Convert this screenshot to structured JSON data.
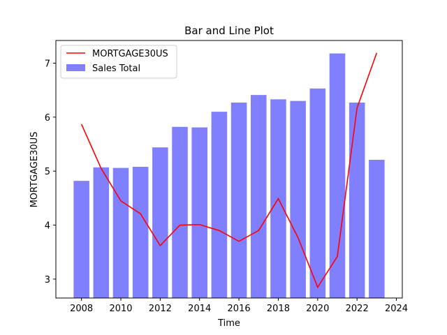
{
  "chart_data": {
    "type": "bar+line",
    "title": "Bar and Line Plot",
    "xlabel": "Time",
    "ylabel": "MORTGAGE30US",
    "xlim": [
      2006.7,
      2024.3
    ],
    "ylim": [
      2.65,
      7.42
    ],
    "xticks": [
      2008,
      2010,
      2012,
      2014,
      2016,
      2018,
      2020,
      2022,
      2024
    ],
    "yticks": [
      3,
      4,
      5,
      6,
      7
    ],
    "grid": false,
    "legend_position": "top-left",
    "x": [
      2008,
      2009,
      2010,
      2011,
      2012,
      2013,
      2014,
      2015,
      2016,
      2017,
      2018,
      2019,
      2020,
      2021,
      2022,
      2023
    ],
    "series": [
      {
        "name": "MORTGAGE30US",
        "kind": "line",
        "color": "#ff0000",
        "values": [
          5.87,
          5.05,
          4.45,
          4.21,
          3.62,
          4.0,
          4.01,
          3.9,
          3.7,
          3.9,
          4.49,
          3.77,
          2.85,
          3.42,
          6.17,
          7.19
        ]
      },
      {
        "name": "Sales Total",
        "kind": "bar",
        "color": "#8080ff",
        "values": [
          4.82,
          5.07,
          5.06,
          5.08,
          5.44,
          5.82,
          5.81,
          6.1,
          6.27,
          6.41,
          6.33,
          6.3,
          6.53,
          7.18,
          6.27,
          5.21
        ]
      }
    ]
  }
}
